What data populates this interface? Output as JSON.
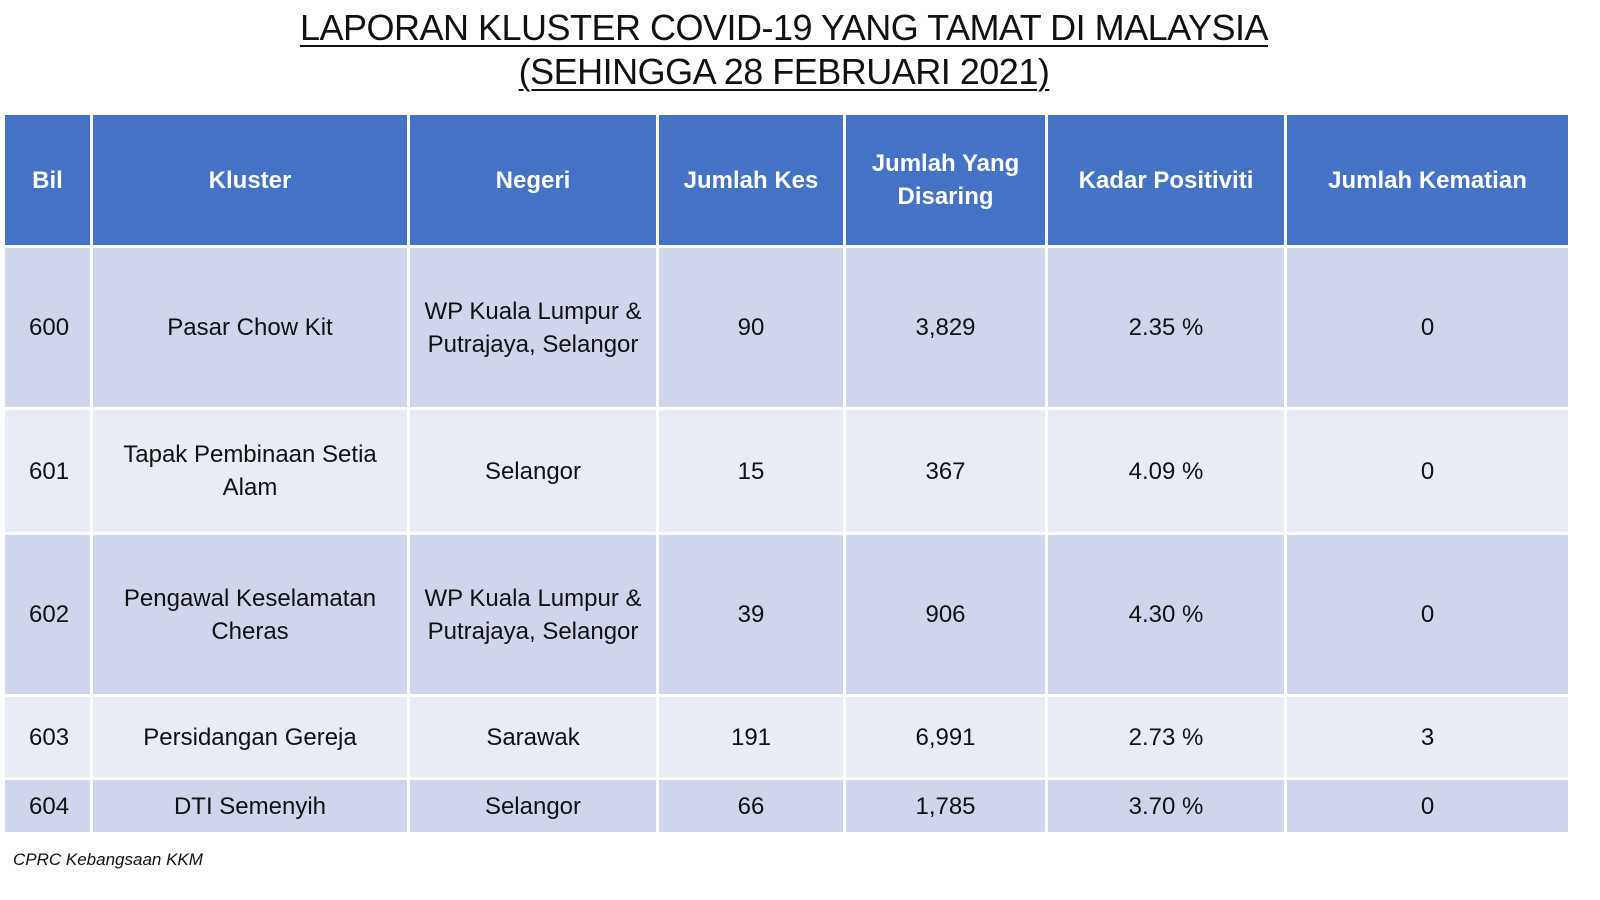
{
  "title": {
    "line1": "LAPORAN KLUSTER COVID-19 YANG TAMAT DI MALAYSIA",
    "line2": "(SEHINGGA 28 FEBRUARI 2021)"
  },
  "colors": {
    "header_bg": "#4472c4",
    "row_odd_bg": "#cfd5ea",
    "row_even_bg": "#e9ebf5"
  },
  "table": {
    "headers": {
      "bil": "Bil",
      "kluster": "Kluster",
      "negeri": "Negeri",
      "jumlah_kes": "Jumlah Kes",
      "jumlah_disaring": "Jumlah Yang Disaring",
      "kadar_positiviti": "Kadar Positiviti",
      "jumlah_kematian": "Jumlah Kematian"
    },
    "rows": [
      {
        "bil": "600",
        "kluster": "Pasar Chow Kit",
        "negeri": "WP Kuala Lumpur & Putrajaya, Selangor",
        "jumlah_kes": "90",
        "jumlah_disaring": "3,829",
        "kadar_positiviti": "2.35 %",
        "jumlah_kematian": "0"
      },
      {
        "bil": "601",
        "kluster": "Tapak Pembinaan Setia Alam",
        "negeri": "Selangor",
        "jumlah_kes": "15",
        "jumlah_disaring": "367",
        "kadar_positiviti": "4.09 %",
        "jumlah_kematian": "0"
      },
      {
        "bil": "602",
        "kluster": "Pengawal Keselamatan Cheras",
        "negeri": "WP Kuala Lumpur & Putrajaya, Selangor",
        "jumlah_kes": "39",
        "jumlah_disaring": "906",
        "kadar_positiviti": "4.30 %",
        "jumlah_kematian": "0"
      },
      {
        "bil": "603",
        "kluster": "Persidangan Gereja",
        "negeri": "Sarawak",
        "jumlah_kes": "191",
        "jumlah_disaring": "6,991",
        "kadar_positiviti": "2.73 %",
        "jumlah_kematian": "3"
      },
      {
        "bil": "604",
        "kluster": "DTI Semenyih",
        "negeri": "Selangor",
        "jumlah_kes": "66",
        "jumlah_disaring": "1,785",
        "kadar_positiviti": "3.70 %",
        "jumlah_kematian": "0"
      }
    ]
  },
  "footnote": "CPRC Kebangsaan KKM"
}
